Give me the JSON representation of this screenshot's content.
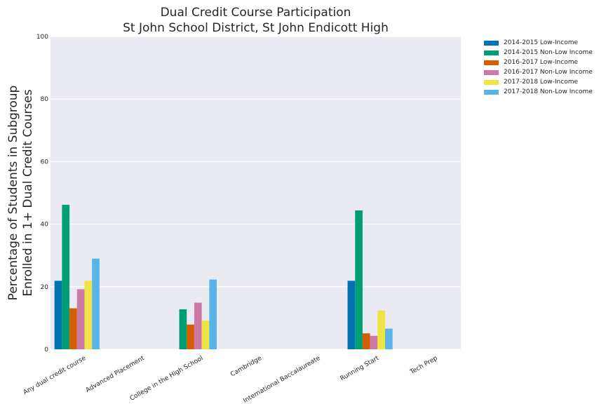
{
  "chart_data": {
    "type": "bar",
    "title": [
      "Dual Credit Course Participation",
      "St John School District, St John Endicott High"
    ],
    "ylabel": [
      "Percentage of Students in Subgroup",
      "Enrolled in 1+ Dual Credit Courses"
    ],
    "xlabel": "",
    "ylim": [
      0,
      100
    ],
    "yticks": [
      0,
      20,
      40,
      60,
      80,
      100
    ],
    "grid": true,
    "legend_position": "outside-top-right",
    "categories": [
      "Any dual credit course",
      "Advanced Placement",
      "College in the High School",
      "Cambridge",
      "International Baccalaureate",
      "Running Start",
      "Tech Prep"
    ],
    "series": [
      {
        "name": "2014-2015 Low-Income",
        "color": "#0072b2",
        "values": [
          21.9,
          0,
          0,
          0,
          0,
          21.9,
          0
        ]
      },
      {
        "name": "2014-2015 Non-Low Income",
        "color": "#009e73",
        "values": [
          46.2,
          0,
          12.8,
          0,
          0,
          44.4,
          0
        ]
      },
      {
        "name": "2016-2017 Low-Income",
        "color": "#d55e00",
        "values": [
          13.1,
          0,
          7.9,
          0,
          0,
          5.1,
          0
        ]
      },
      {
        "name": "2016-2017 Non-Low Income",
        "color": "#cc79a7",
        "values": [
          19.2,
          0,
          14.9,
          0,
          0,
          4.3,
          0
        ]
      },
      {
        "name": "2017-2018 Low-Income",
        "color": "#f0e442",
        "values": [
          21.9,
          0,
          9.2,
          0,
          0,
          12.4,
          0
        ]
      },
      {
        "name": "2017-2018 Non-Low Income",
        "color": "#56b4e9",
        "values": [
          29.0,
          0,
          22.3,
          0,
          0,
          6.6,
          0
        ]
      }
    ]
  }
}
